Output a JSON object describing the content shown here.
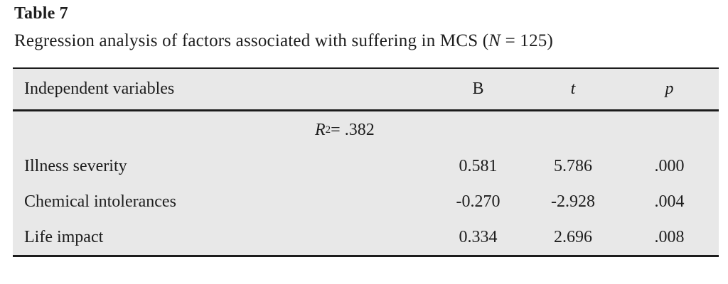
{
  "title": "Table 7",
  "caption": {
    "prefix": "Regression analysis of factors associated with suffering in MCS (",
    "italic_n": "N",
    "suffix": " = 125)"
  },
  "table": {
    "header": {
      "label": "Independent variables",
      "col_b": "B",
      "col_t": "t",
      "col_p": "p"
    },
    "r_squared": {
      "symbol": "R",
      "superscript": "2",
      "rest": " = .382"
    },
    "rows": [
      {
        "label": "Illness severity",
        "b": "0.581",
        "t": "5.786",
        "p": ".000"
      },
      {
        "label": "Chemical intolerances",
        "b": "-0.270",
        "t": "-2.928",
        "p": ".004"
      },
      {
        "label": "Life impact",
        "b": "0.334",
        "t": "2.696",
        "p": ".008"
      }
    ]
  },
  "colors": {
    "table_background": "#e8e8e8",
    "rule": "#1c1c1c",
    "text": "#1d1d1d",
    "page_background": "#ffffff"
  }
}
